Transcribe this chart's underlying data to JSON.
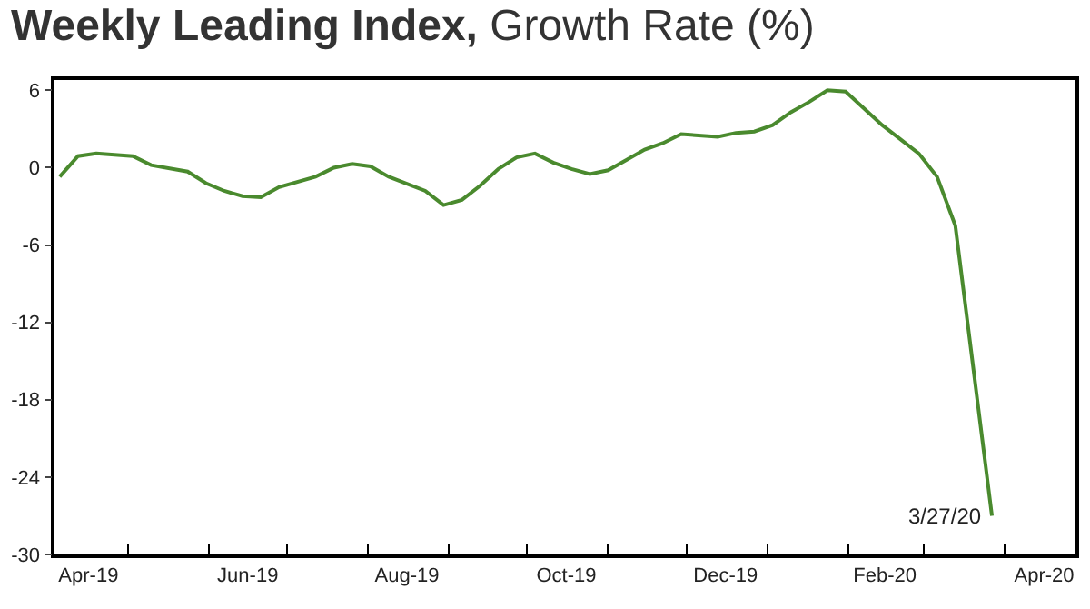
{
  "chart_data": {
    "type": "line",
    "title": "Weekly Leading Index, Growth Rate (%)",
    "x": [
      "2019-04-05",
      "2019-04-12",
      "2019-04-19",
      "2019-05-03",
      "2019-05-10",
      "2019-05-24",
      "2019-05-31",
      "2019-06-07",
      "2019-06-14",
      "2019-06-21",
      "2019-06-28",
      "2019-07-12",
      "2019-07-19",
      "2019-07-26",
      "2019-08-02",
      "2019-08-09",
      "2019-08-23",
      "2019-08-30",
      "2019-09-06",
      "2019-09-13",
      "2019-09-20",
      "2019-09-27",
      "2019-10-04",
      "2019-10-11",
      "2019-10-18",
      "2019-10-25",
      "2019-11-01",
      "2019-11-08",
      "2019-11-15",
      "2019-11-22",
      "2019-11-29",
      "2019-12-13",
      "2019-12-20",
      "2019-12-27",
      "2020-01-03",
      "2020-01-10",
      "2020-01-17",
      "2020-01-24",
      "2020-01-31",
      "2020-02-07",
      "2020-02-14",
      "2020-02-28",
      "2020-03-06",
      "2020-03-13",
      "2020-03-27"
    ],
    "series": [
      {
        "color": "#4a8a2e",
        "values": [
          -0.7,
          0.9,
          1.1,
          0.9,
          0.2,
          -0.3,
          -1.2,
          -1.8,
          -2.2,
          -2.3,
          -1.5,
          -0.7,
          0.0,
          0.3,
          0.1,
          -0.7,
          -1.8,
          -2.9,
          -2.5,
          -1.4,
          -0.1,
          0.8,
          1.1,
          0.4,
          -0.1,
          -0.5,
          -0.2,
          0.6,
          1.4,
          1.9,
          2.6,
          2.4,
          2.7,
          2.8,
          3.3,
          4.3,
          5.1,
          6.0,
          5.9,
          4.6,
          3.3,
          1.1,
          -0.7,
          -4.5,
          -27.0
        ]
      }
    ],
    "xlim": [
      "2019-04-03",
      "2020-04-28"
    ],
    "xticks": [
      {
        "value": "2019-04-16",
        "label": "Apr-19"
      },
      {
        "value": "2019-06-16",
        "label": "Jun-19"
      },
      {
        "value": "2019-08-16",
        "label": "Aug-19"
      },
      {
        "value": "2019-10-16",
        "label": "Oct-19"
      },
      {
        "value": "2019-12-16",
        "label": "Dec-19"
      },
      {
        "value": "2020-02-15",
        "label": "Feb-20"
      },
      {
        "value": "2020-04-16",
        "label": "Apr-20"
      },
      {
        "value": "2019-05-01",
        "label": null
      },
      {
        "value": "2019-06-01",
        "label": null
      },
      {
        "value": "2019-07-01",
        "label": null
      },
      {
        "value": "2019-08-01",
        "label": null
      },
      {
        "value": "2019-09-01",
        "label": null
      },
      {
        "value": "2019-10-01",
        "label": null
      },
      {
        "value": "2019-11-01",
        "label": null
      },
      {
        "value": "2019-12-01",
        "label": null
      },
      {
        "value": "2020-01-01",
        "label": null
      },
      {
        "value": "2020-02-01",
        "label": null
      },
      {
        "value": "2020-03-01",
        "label": null
      },
      {
        "value": "2020-04-01",
        "label": null
      }
    ],
    "ylim": [
      -30,
      6.8
    ],
    "yticks": [
      -30,
      -24,
      -18,
      -12,
      -6,
      0,
      6
    ],
    "annotations": [
      {
        "text": "3/27/20",
        "x": "2020-03-27",
        "y": -27.0
      }
    ],
    "marker": "none",
    "line_style": "solid"
  }
}
